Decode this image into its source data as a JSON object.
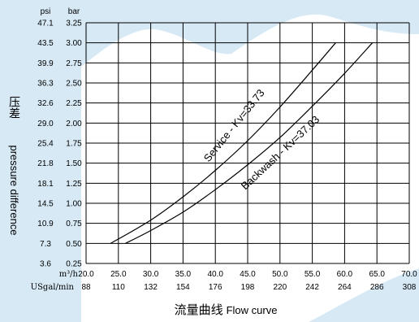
{
  "chart_data": {
    "type": "line",
    "title": "流量曲线 Flow curve",
    "title_cn": "流量曲线",
    "title_en": "Flow curve",
    "ylabel_cn": "压差",
    "ylabel_en": "pressure difference",
    "y_unit_psi": "psi",
    "y_unit_bar": "bar",
    "x_unit_m3h": "m³/h",
    "x_unit_usgal": "USgal/min",
    "xlim": [
      20,
      70
    ],
    "ylim": [
      0.25,
      3.25
    ],
    "x_ticks_m3h": [
      "20.0",
      "25.0",
      "30.0",
      "35.0",
      "40.0",
      "45.0",
      "50.0",
      "55.0",
      "60.0",
      "65.0",
      "70.0"
    ],
    "x_ticks_usgal": [
      "88",
      "110",
      "132",
      "154",
      "176",
      "198",
      "220",
      "242",
      "264",
      "286",
      "308"
    ],
    "y_ticks_bar": [
      "0.25",
      "0.50",
      "0.75",
      "1.00",
      "1.25",
      "1.50",
      "1.75",
      "2.00",
      "2.25",
      "2.50",
      "2.75",
      "3.00",
      "3.25"
    ],
    "y_ticks_psi": [
      "3.6",
      "7.3",
      "10.9",
      "14.5",
      "18.1",
      "21.8",
      "25.4",
      "29.0",
      "32.6",
      "36.3",
      "39.9",
      "43.5",
      "47.1"
    ],
    "grid": true,
    "series": [
      {
        "name": "Service - Kv=33.73",
        "color": "#000000",
        "x": [
          23.8,
          30,
          35,
          40,
          45,
          50,
          55,
          58.6
        ],
        "y": [
          0.5,
          0.79,
          1.08,
          1.41,
          1.78,
          2.2,
          2.66,
          3.0
        ]
      },
      {
        "name": "Backwash - Kv=37.03",
        "color": "#000000",
        "x": [
          26.1,
          30,
          35,
          40,
          45,
          50,
          55,
          60,
          64.3
        ],
        "y": [
          0.5,
          0.66,
          0.89,
          1.17,
          1.48,
          1.82,
          2.21,
          2.62,
          3.0
        ]
      }
    ]
  }
}
